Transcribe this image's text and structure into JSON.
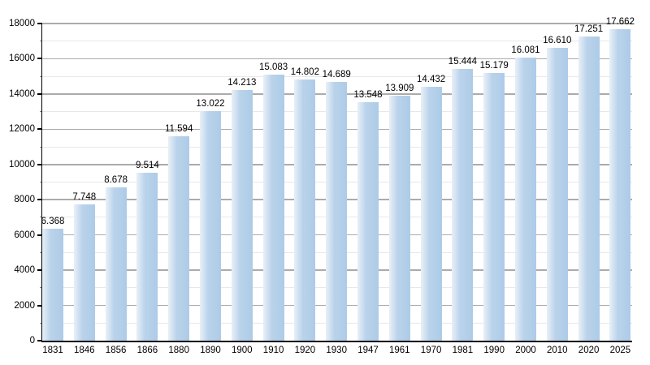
{
  "chart_data": {
    "type": "bar",
    "title": "",
    "xlabel": "",
    "ylabel": "",
    "categories": [
      "1831",
      "1846",
      "1856",
      "1866",
      "1880",
      "1890",
      "1900",
      "1910",
      "1920",
      "1930",
      "1947",
      "1961",
      "1970",
      "1981",
      "1990",
      "2000",
      "2010",
      "2020",
      "2025"
    ],
    "values": [
      6368,
      7748,
      8678,
      9514,
      11594,
      13022,
      14213,
      15083,
      14802,
      14689,
      13548,
      13909,
      14432,
      15444,
      15179,
      16081,
      16610,
      17251,
      17662
    ],
    "value_labels": [
      "6.368",
      "7.748",
      "8.678",
      "9.514",
      "11.594",
      "13.022",
      "14.213",
      "15.083",
      "14.802",
      "14.689",
      "13.548",
      "13.909",
      "14.432",
      "15.444",
      "15.179",
      "16.081",
      "16.610",
      "17.251",
      "17.662"
    ],
    "ylim": [
      0,
      18000
    ],
    "y_major_step": 2000,
    "y_minor_step": 1000,
    "y_tick_labels": [
      "0",
      "2000",
      "4000",
      "6000",
      "8000",
      "10000",
      "12000",
      "14000",
      "16000",
      "18000"
    ],
    "grid": "major-and-minor-horizontal",
    "legend": "none",
    "colors": {
      "bar_fill": "#adcbe7",
      "bar_fill_light": "#e9f0f8",
      "grid_major": "#ababab",
      "grid_minor": "#e8e8e8",
      "axis": "#000000",
      "text": "#000000",
      "background": "#ffffff"
    }
  }
}
